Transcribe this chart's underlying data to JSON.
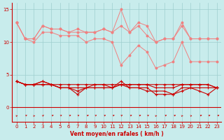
{
  "x": [
    0,
    1,
    2,
    3,
    4,
    5,
    6,
    7,
    8,
    9,
    10,
    11,
    12,
    13,
    14,
    15,
    16,
    17,
    18,
    19,
    20,
    21,
    22,
    23
  ],
  "light_lines": [
    [
      13.0,
      10.5,
      10.5,
      12.5,
      12.0,
      12.0,
      11.5,
      12.0,
      11.5,
      11.5,
      12.0,
      11.5,
      15.0,
      11.5,
      13.0,
      12.5,
      10.0,
      10.5,
      10.5,
      13.0,
      10.5,
      10.5,
      10.5,
      10.5
    ],
    [
      13.0,
      10.5,
      10.5,
      12.5,
      12.0,
      12.0,
      11.5,
      11.5,
      11.5,
      11.5,
      12.0,
      11.5,
      12.5,
      11.5,
      12.5,
      11.0,
      10.0,
      10.5,
      10.5,
      12.5,
      10.5,
      10.5,
      10.5,
      10.5
    ],
    [
      13.0,
      10.5,
      10.0,
      11.5,
      11.5,
      11.0,
      11.0,
      11.0,
      10.0,
      10.5,
      10.5,
      10.0,
      6.5,
      8.0,
      9.5,
      8.5,
      6.0,
      6.5,
      7.0,
      10.0,
      7.0,
      7.0,
      7.0,
      7.0
    ]
  ],
  "dark_lines": [
    [
      4.0,
      3.5,
      3.5,
      4.0,
      3.5,
      3.5,
      3.5,
      3.5,
      3.5,
      3.5,
      3.5,
      3.5,
      3.5,
      3.5,
      3.5,
      3.5,
      3.5,
      3.5,
      3.5,
      3.5,
      3.5,
      3.5,
      3.5,
      3.0
    ],
    [
      4.0,
      3.5,
      3.5,
      3.5,
      3.5,
      3.0,
      3.0,
      3.0,
      3.0,
      3.5,
      3.5,
      3.0,
      3.5,
      3.5,
      3.5,
      3.5,
      3.0,
      3.0,
      3.0,
      3.5,
      3.5,
      3.5,
      3.5,
      3.0
    ],
    [
      4.0,
      3.5,
      3.5,
      4.0,
      3.5,
      3.0,
      3.0,
      2.0,
      3.0,
      3.0,
      3.0,
      3.0,
      4.0,
      3.0,
      3.0,
      2.5,
      2.5,
      2.5,
      2.0,
      3.0,
      3.0,
      2.5,
      2.0,
      3.0
    ],
    [
      4.0,
      3.5,
      3.5,
      3.5,
      3.5,
      3.0,
      3.0,
      2.5,
      3.0,
      3.0,
      3.0,
      3.0,
      3.5,
      3.0,
      3.0,
      3.0,
      2.0,
      2.0,
      2.0,
      2.5,
      3.0,
      3.0,
      3.0,
      3.0
    ]
  ],
  "light_color": "#f08080",
  "dark_color": "#cc0000",
  "bg_color": "#c8ecec",
  "grid_color": "#9ecece",
  "xlabel": "Vent moyen/en rafales ( km/h )",
  "ylabel_ticks": [
    0,
    5,
    10,
    15
  ],
  "xlim": [
    -0.5,
    23.5
  ],
  "ylim": [
    -2.2,
    16
  ],
  "arrow_angles": [
    220,
    205,
    220,
    195,
    210,
    205,
    210,
    205,
    215,
    205,
    210,
    210,
    200,
    210,
    215,
    205,
    220,
    210,
    215,
    220,
    225,
    215,
    210,
    215
  ]
}
